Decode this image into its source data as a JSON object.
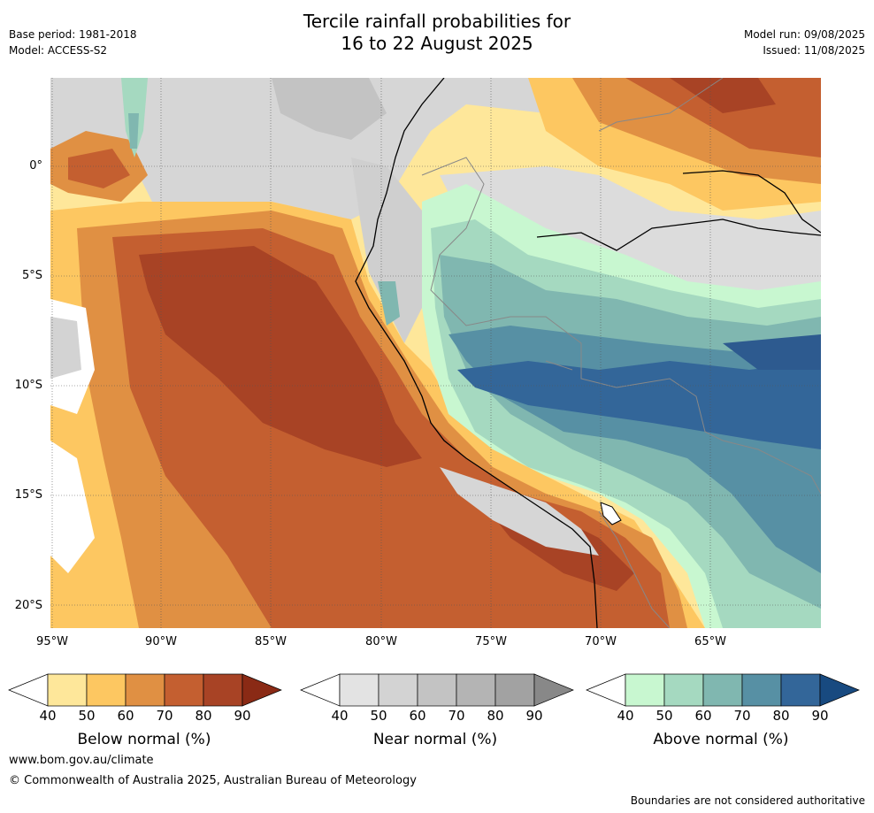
{
  "title_line1": "Tercile rainfall probabilities for",
  "title_line2": "16 to 22 August 2025",
  "base_period": "Base period: 1981-2018",
  "model": "Model: ACCESS-S2",
  "model_run": "Model run: 09/08/2025",
  "issued": "Issued: 11/08/2025",
  "lat_labels": [
    "0°",
    "5°S",
    "10°S",
    "15°S",
    "20°S"
  ],
  "lon_labels": [
    "95°W",
    "90°W",
    "85°W",
    "80°W",
    "75°W",
    "70°W",
    "65°W"
  ],
  "colorbars": [
    {
      "title": "Below normal (%)",
      "ticks": [
        "40",
        "50",
        "60",
        "70",
        "80",
        "90"
      ],
      "colors": [
        "#ffffff",
        "#fee79a",
        "#fdc761",
        "#e09043",
        "#c45f30",
        "#a84325",
        "#8a2a15"
      ]
    },
    {
      "title": "Near normal (%)",
      "ticks": [
        "40",
        "50",
        "60",
        "70",
        "80",
        "90"
      ],
      "colors": [
        "#ffffff",
        "#e3e3e3",
        "#d3d3d3",
        "#c3c3c3",
        "#b4b4b4",
        "#a2a2a2",
        "#888888"
      ]
    },
    {
      "title": "Above normal (%)",
      "ticks": [
        "40",
        "50",
        "60",
        "70",
        "80",
        "90"
      ],
      "colors": [
        "#ffffff",
        "#c8f7d0",
        "#a5d9c0",
        "#80b7b0",
        "#5790a4",
        "#336699",
        "#184a80"
      ]
    }
  ],
  "website": "www.bom.gov.au/climate",
  "copyright": "© Commonwealth of Australia 2025, Australian Bureau of Meteorology",
  "disclaimer": "Boundaries are not considered authoritative"
}
